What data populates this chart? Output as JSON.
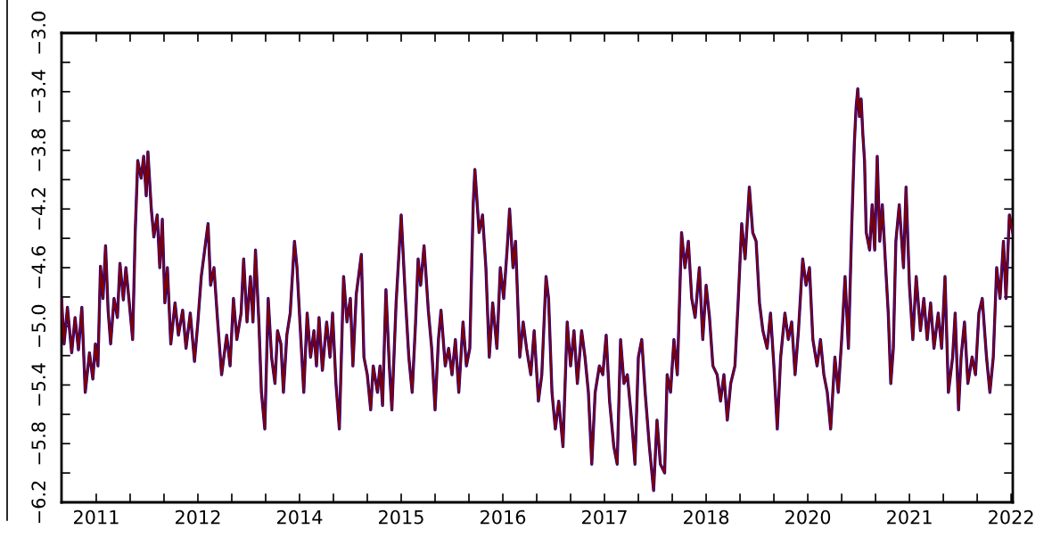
{
  "chart_data": {
    "type": "line",
    "x": [
      2010.79,
      2010.82,
      2010.86,
      2010.91,
      2010.95,
      2010.99,
      2011.03,
      2011.07,
      2011.12,
      2011.16,
      2011.19,
      2011.22,
      2011.25,
      2011.28,
      2011.31,
      2011.34,
      2011.37,
      2011.41,
      2011.45,
      2011.48,
      2011.52,
      2011.55,
      2011.59,
      2011.63,
      2011.66,
      2011.69,
      2011.73,
      2011.76,
      2011.79,
      2011.81,
      2011.85,
      2011.88,
      2011.92,
      2011.95,
      2011.98,
      2012.01,
      2012.04,
      2012.08,
      2012.13,
      2012.17,
      2012.22,
      2012.26,
      2012.31,
      2012.36,
      2012.4,
      2012.44,
      2012.48,
      2012.52,
      2012.55,
      2012.59,
      2012.63,
      2012.68,
      2012.74,
      2012.78,
      2012.82,
      2012.86,
      2012.91,
      2012.94,
      2012.98,
      2013.02,
      2013.05,
      2013.08,
      2013.12,
      2013.15,
      2013.19,
      2013.23,
      2013.27,
      2013.31,
      2013.34,
      2013.38,
      2013.41,
      2013.45,
      2013.49,
      2013.54,
      2013.57,
      2013.61,
      2013.65,
      2013.69,
      2013.73,
      2013.77,
      2013.8,
      2013.83,
      2013.87,
      2013.92,
      2013.96,
      2013.99,
      2014.03,
      2014.07,
      2014.12,
      2014.16,
      2014.2,
      2014.23,
      2014.27,
      2014.33,
      2014.36,
      2014.4,
      2014.44,
      2014.47,
      2014.52,
      2014.55,
      2014.58,
      2014.62,
      2014.66,
      2014.69,
      2014.74,
      2014.8,
      2014.85,
      2014.89,
      2014.93,
      2014.97,
      2015.0,
      2015.03,
      2015.07,
      2015.12,
      2015.16,
      2015.2,
      2015.24,
      2015.27,
      2015.32,
      2015.36,
      2015.4,
      2015.44,
      2015.48,
      2015.53,
      2015.57,
      2015.61,
      2015.65,
      2015.67,
      2015.72,
      2015.76,
      2015.8,
      2015.84,
      2015.88,
      2015.93,
      2015.97,
      2016.01,
      2016.05,
      2016.08,
      2016.12,
      2016.15,
      2016.2,
      2016.24,
      2016.28,
      2016.33,
      2016.37,
      2016.42,
      2016.46,
      2016.51,
      2016.54,
      2016.58,
      2016.62,
      2016.66,
      2016.71,
      2016.76,
      2016.8,
      2016.84,
      2016.88,
      2016.93,
      2016.97,
      2017.01,
      2017.05,
      2017.09,
      2017.14,
      2017.18,
      2017.22,
      2017.26,
      2017.31,
      2017.35,
      2017.39,
      2017.43,
      2017.47,
      2017.52,
      2017.56,
      2017.6,
      2017.64,
      2017.68,
      2017.73,
      2017.78,
      2017.82,
      2017.86,
      2017.91,
      2017.94,
      2017.98,
      2018.02,
      2018.06,
      2018.11,
      2018.15,
      2018.19,
      2018.23,
      2018.27,
      2018.32,
      2018.36,
      2018.4,
      2018.44,
      2018.48,
      2018.53,
      2018.57,
      2018.61,
      2018.65,
      2018.69,
      2018.74,
      2018.78,
      2018.82,
      2018.86,
      2018.91,
      2018.95,
      2018.99,
      2019.03,
      2019.07,
      2019.12,
      2019.16,
      2019.2,
      2019.24,
      2019.28,
      2019.33,
      2019.37,
      2019.41,
      2019.45,
      2019.49,
      2019.54,
      2019.58,
      2019.62,
      2019.66,
      2019.71,
      2019.75,
      2019.79,
      2019.83,
      2019.87,
      2019.92,
      2019.96,
      2020.0,
      2020.04,
      2020.08,
      2020.12,
      2020.15,
      2020.17,
      2020.19,
      2020.21,
      2020.23,
      2020.25,
      2020.27,
      2020.29,
      2020.33,
      2020.36,
      2020.39,
      2020.42,
      2020.45,
      2020.48,
      2020.52,
      2020.55,
      2020.58,
      2020.61,
      2020.64,
      2020.68,
      2020.73,
      2020.76,
      2020.8,
      2020.84,
      2020.88,
      2020.93,
      2020.97,
      2021.01,
      2021.05,
      2021.09,
      2021.14,
      2021.18,
      2021.22,
      2021.26,
      2021.31,
      2021.34,
      2021.38,
      2021.41,
      2021.45,
      2021.49,
      2021.54,
      2021.58,
      2021.62,
      2021.66,
      2021.71,
      2021.75,
      2021.79,
      2021.83,
      2021.87,
      2021.91,
      2021.94,
      2021.98,
      2022.02
    ],
    "series": [
      {
        "color": "#0000cc",
        "values": [
          -4.81,
          -5.12,
          -4.87,
          -5.18,
          -4.94,
          -5.16,
          -4.87,
          -5.45,
          -5.18,
          -5.36,
          -5.12,
          -5.27,
          -4.59,
          -4.81,
          -4.45,
          -4.89,
          -5.12,
          -4.81,
          -4.94,
          -4.57,
          -4.82,
          -4.6,
          -4.84,
          -5.09,
          -4.36,
          -3.87,
          -3.99,
          -3.84,
          -4.11,
          -3.81,
          -4.2,
          -4.39,
          -4.24,
          -4.6,
          -4.27,
          -4.84,
          -4.6,
          -5.12,
          -4.84,
          -5.06,
          -4.89,
          -5.15,
          -4.91,
          -5.24,
          -4.97,
          -4.66,
          -4.48,
          -4.3,
          -4.72,
          -4.6,
          -4.94,
          -5.33,
          -5.06,
          -5.27,
          -4.81,
          -5.09,
          -4.91,
          -4.54,
          -4.97,
          -4.66,
          -4.97,
          -4.48,
          -4.97,
          -5.45,
          -5.7,
          -4.81,
          -5.21,
          -5.39,
          -5.03,
          -5.12,
          -5.45,
          -5.06,
          -4.91,
          -4.42,
          -4.6,
          -5.03,
          -5.45,
          -4.91,
          -5.21,
          -5.03,
          -5.27,
          -4.94,
          -5.3,
          -4.97,
          -5.21,
          -4.91,
          -5.39,
          -5.7,
          -4.66,
          -4.97,
          -4.81,
          -5.27,
          -4.78,
          -4.51,
          -5.21,
          -5.33,
          -5.57,
          -5.27,
          -5.45,
          -5.27,
          -5.54,
          -4.75,
          -5.27,
          -5.57,
          -4.84,
          -4.24,
          -4.81,
          -5.21,
          -5.45,
          -4.97,
          -4.54,
          -4.72,
          -4.45,
          -4.89,
          -5.15,
          -5.57,
          -5.09,
          -4.89,
          -5.27,
          -5.15,
          -5.33,
          -5.09,
          -5.45,
          -4.97,
          -5.27,
          -5.15,
          -4.17,
          -3.93,
          -4.36,
          -4.24,
          -4.6,
          -5.21,
          -4.84,
          -5.15,
          -4.6,
          -4.81,
          -4.48,
          -4.2,
          -4.6,
          -4.42,
          -5.21,
          -4.97,
          -5.15,
          -5.33,
          -5.03,
          -5.51,
          -5.33,
          -4.66,
          -4.81,
          -5.45,
          -5.7,
          -5.51,
          -5.82,
          -4.97,
          -5.27,
          -5.03,
          -5.39,
          -5.03,
          -5.21,
          -5.45,
          -5.94,
          -5.45,
          -5.27,
          -5.33,
          -5.06,
          -5.51,
          -5.82,
          -5.94,
          -5.09,
          -5.39,
          -5.33,
          -5.64,
          -5.94,
          -5.21,
          -5.09,
          -5.45,
          -5.82,
          -6.12,
          -5.64,
          -5.94,
          -6.0,
          -5.33,
          -5.45,
          -5.09,
          -5.33,
          -4.36,
          -4.6,
          -4.42,
          -4.81,
          -4.94,
          -4.6,
          -5.09,
          -4.72,
          -4.94,
          -5.27,
          -5.33,
          -5.51,
          -5.33,
          -5.64,
          -5.39,
          -5.27,
          -4.81,
          -4.3,
          -4.54,
          -4.05,
          -4.36,
          -4.42,
          -4.84,
          -5.03,
          -5.15,
          -4.91,
          -5.27,
          -5.7,
          -5.21,
          -4.91,
          -5.09,
          -4.97,
          -5.33,
          -5.03,
          -4.54,
          -4.72,
          -4.6,
          -5.09,
          -5.27,
          -5.09,
          -5.33,
          -5.45,
          -5.7,
          -5.21,
          -5.45,
          -5.09,
          -4.66,
          -5.15,
          -4.3,
          -3.75,
          -3.51,
          -3.38,
          -3.57,
          -3.45,
          -3.69,
          -3.87,
          -4.36,
          -4.48,
          -4.17,
          -4.48,
          -3.84,
          -4.42,
          -4.17,
          -4.6,
          -4.91,
          -5.39,
          -5.15,
          -4.42,
          -4.17,
          -4.6,
          -4.05,
          -4.72,
          -5.09,
          -4.66,
          -5.03,
          -4.81,
          -5.09,
          -4.84,
          -5.15,
          -4.91,
          -5.15,
          -4.66,
          -5.45,
          -5.21,
          -4.91,
          -5.57,
          -5.21,
          -4.97,
          -5.39,
          -5.21,
          -5.33,
          -4.91,
          -4.81,
          -5.21,
          -5.45,
          -5.21,
          -4.6,
          -4.81,
          -4.42,
          -4.81,
          -4.24,
          -4.36
        ]
      },
      {
        "color": "#800000",
        "values": [
          -4.81,
          -5.12,
          -4.87,
          -5.18,
          -4.94,
          -5.16,
          -4.87,
          -5.45,
          -5.18,
          -5.36,
          -5.12,
          -5.27,
          -4.59,
          -4.81,
          -4.45,
          -4.89,
          -5.12,
          -4.81,
          -4.94,
          -4.57,
          -4.82,
          -4.6,
          -4.84,
          -5.09,
          -4.36,
          -3.87,
          -3.99,
          -3.84,
          -4.11,
          -3.81,
          -4.2,
          -4.39,
          -4.24,
          -4.6,
          -4.27,
          -4.84,
          -4.6,
          -5.12,
          -4.84,
          -5.06,
          -4.89,
          -5.15,
          -4.91,
          -5.24,
          -4.97,
          -4.66,
          -4.48,
          -4.3,
          -4.72,
          -4.6,
          -4.94,
          -5.33,
          -5.06,
          -5.27,
          -4.81,
          -5.09,
          -4.91,
          -4.54,
          -4.97,
          -4.66,
          -4.97,
          -4.48,
          -4.97,
          -5.45,
          -5.7,
          -4.81,
          -5.21,
          -5.39,
          -5.03,
          -5.12,
          -5.45,
          -5.06,
          -4.91,
          -4.42,
          -4.6,
          -5.03,
          -5.45,
          -4.91,
          -5.21,
          -5.03,
          -5.27,
          -4.94,
          -5.3,
          -4.97,
          -5.21,
          -4.91,
          -5.39,
          -5.7,
          -4.66,
          -4.97,
          -4.81,
          -5.27,
          -4.78,
          -4.51,
          -5.21,
          -5.33,
          -5.57,
          -5.27,
          -5.45,
          -5.27,
          -5.54,
          -4.75,
          -5.27,
          -5.57,
          -4.84,
          -4.24,
          -4.81,
          -5.21,
          -5.45,
          -4.97,
          -4.54,
          -4.72,
          -4.45,
          -4.89,
          -5.15,
          -5.57,
          -5.09,
          -4.89,
          -5.27,
          -5.15,
          -5.33,
          -5.09,
          -5.45,
          -4.97,
          -5.27,
          -5.15,
          -4.17,
          -3.93,
          -4.36,
          -4.24,
          -4.6,
          -5.21,
          -4.84,
          -5.15,
          -4.6,
          -4.81,
          -4.48,
          -4.2,
          -4.6,
          -4.42,
          -5.21,
          -4.97,
          -5.15,
          -5.33,
          -5.03,
          -5.51,
          -5.33,
          -4.66,
          -4.81,
          -5.45,
          -5.7,
          -5.51,
          -5.82,
          -4.97,
          -5.27,
          -5.03,
          -5.39,
          -5.03,
          -5.21,
          -5.45,
          -5.94,
          -5.45,
          -5.27,
          -5.33,
          -5.06,
          -5.51,
          -5.82,
          -5.94,
          -5.09,
          -5.39,
          -5.33,
          -5.64,
          -5.94,
          -5.21,
          -5.09,
          -5.45,
          -5.82,
          -6.12,
          -5.64,
          -5.94,
          -6.0,
          -5.33,
          -5.45,
          -5.09,
          -5.33,
          -4.36,
          -4.6,
          -4.42,
          -4.81,
          -4.94,
          -4.6,
          -5.09,
          -4.72,
          -4.94,
          -5.27,
          -5.33,
          -5.51,
          -5.33,
          -5.64,
          -5.39,
          -5.27,
          -4.81,
          -4.3,
          -4.54,
          -4.05,
          -4.36,
          -4.42,
          -4.84,
          -5.03,
          -5.15,
          -4.91,
          -5.27,
          -5.7,
          -5.21,
          -4.91,
          -5.09,
          -4.97,
          -5.33,
          -5.03,
          -4.54,
          -4.72,
          -4.6,
          -5.09,
          -5.27,
          -5.09,
          -5.33,
          -5.45,
          -5.7,
          -5.21,
          -5.45,
          -5.09,
          -4.66,
          -5.15,
          -4.3,
          -3.75,
          -3.51,
          -3.38,
          -3.57,
          -3.45,
          -3.69,
          -3.87,
          -4.36,
          -4.48,
          -4.17,
          -4.48,
          -3.84,
          -4.42,
          -4.17,
          -4.6,
          -4.91,
          -5.39,
          -5.15,
          -4.42,
          -4.17,
          -4.6,
          -4.05,
          -4.72,
          -5.09,
          -4.66,
          -5.03,
          -4.81,
          -5.09,
          -4.84,
          -5.15,
          -4.91,
          -5.15,
          -4.66,
          -5.45,
          -5.21,
          -4.91,
          -5.57,
          -5.21,
          -4.97,
          -5.39,
          -5.21,
          -5.33,
          -4.91,
          -4.81,
          -5.21,
          -5.45,
          -5.21,
          -4.6,
          -4.81,
          -4.42,
          -4.81,
          -4.24,
          -4.36
        ]
      }
    ],
    "xlim": [
      2010.79,
      2022.02
    ],
    "xticks": [
      {
        "value": 2011.2,
        "label": "2011"
      },
      {
        "value": 2011.6,
        "label": null
      },
      {
        "value": 2012.0,
        "label": null
      },
      {
        "value": 2012.4,
        "label": "2012"
      },
      {
        "value": 2012.8,
        "label": null
      },
      {
        "value": 2013.2,
        "label": null
      },
      {
        "value": 2013.6,
        "label": "2014"
      },
      {
        "value": 2014.0,
        "label": null
      },
      {
        "value": 2014.4,
        "label": null
      },
      {
        "value": 2014.8,
        "label": "2015"
      },
      {
        "value": 2015.2,
        "label": null
      },
      {
        "value": 2015.6,
        "label": null
      },
      {
        "value": 2016.0,
        "label": "2016"
      },
      {
        "value": 2016.4,
        "label": null
      },
      {
        "value": 2016.8,
        "label": null
      },
      {
        "value": 2017.2,
        "label": "2017"
      },
      {
        "value": 2017.6,
        "label": null
      },
      {
        "value": 2018.0,
        "label": null
      },
      {
        "value": 2018.4,
        "label": "2018"
      },
      {
        "value": 2018.8,
        "label": null
      },
      {
        "value": 2019.2,
        "label": null
      },
      {
        "value": 2019.6,
        "label": "2020"
      },
      {
        "value": 2020.0,
        "label": null
      },
      {
        "value": 2020.4,
        "label": null
      },
      {
        "value": 2020.8,
        "label": "2021"
      },
      {
        "value": 2021.2,
        "label": null
      },
      {
        "value": 2021.6,
        "label": null
      },
      {
        "value": 2022.0,
        "label": "2022"
      }
    ],
    "ylim": [
      -6.2,
      -3.0
    ],
    "yticks": [
      {
        "value": -6.2,
        "label": "−6.2"
      },
      {
        "value": -6.0,
        "label": null
      },
      {
        "value": -5.8,
        "label": "−5.8"
      },
      {
        "value": -5.6,
        "label": null
      },
      {
        "value": -5.4,
        "label": "−5.4"
      },
      {
        "value": -5.2,
        "label": null
      },
      {
        "value": -5.0,
        "label": "−5.0"
      },
      {
        "value": -4.8,
        "label": null
      },
      {
        "value": -4.6,
        "label": "−4.6"
      },
      {
        "value": -4.4,
        "label": null
      },
      {
        "value": -4.2,
        "label": "−4.2"
      },
      {
        "value": -4.0,
        "label": null
      },
      {
        "value": -3.8,
        "label": "−3.8"
      },
      {
        "value": -3.6,
        "label": null
      },
      {
        "value": -3.4,
        "label": "−3.4"
      },
      {
        "value": -3.2,
        "label": null
      },
      {
        "value": -3.0,
        "label": "−3.0"
      }
    ],
    "grid": false,
    "marker": "none",
    "line_style": "solid"
  }
}
